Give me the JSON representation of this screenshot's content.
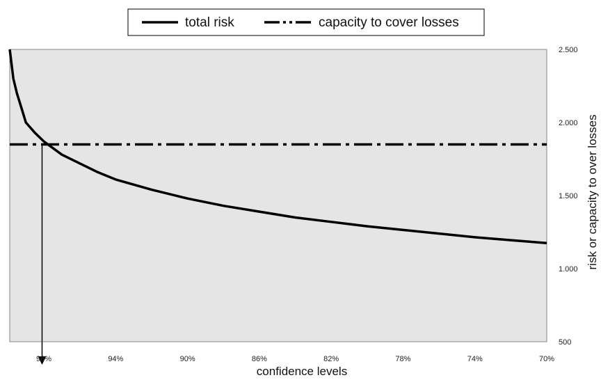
{
  "chart_data": {
    "type": "line",
    "title": "",
    "xlabel": "confidence levels",
    "ylabel": "risk or capacity to over losses",
    "x_axis_reversed": true,
    "xlim": [
      70,
      99.9
    ],
    "ylim": [
      500,
      2500
    ],
    "x_ticks": [
      98,
      94,
      90,
      86,
      82,
      78,
      74,
      70
    ],
    "x_tick_labels": [
      "98%",
      "94%",
      "90%",
      "86%",
      "82%",
      "78%",
      "74%",
      "70%"
    ],
    "y_ticks": [
      2500,
      2000,
      1500,
      1000,
      500
    ],
    "y_tick_labels": [
      "2.500",
      "2.000",
      "1.500",
      "1.000",
      "500"
    ],
    "grid": false,
    "plot_background": "#e5e5e5",
    "legend": {
      "placement": "top-center",
      "entries": [
        "total risk",
        "capacity to cover losses"
      ]
    },
    "series": [
      {
        "name": "total risk",
        "style": "solid",
        "color": "#000000",
        "x": [
          99.9,
          99.7,
          99.5,
          99.2,
          99,
          98.5,
          98,
          97,
          96,
          95,
          94,
          92,
          90,
          88,
          86,
          84,
          82,
          80,
          78,
          76,
          74,
          72,
          70
        ],
        "y": [
          2500,
          2300,
          2200,
          2080,
          2000,
          1930,
          1870,
          1780,
          1720,
          1660,
          1610,
          1540,
          1480,
          1430,
          1390,
          1350,
          1320,
          1290,
          1265,
          1240,
          1215,
          1195,
          1175
        ]
      },
      {
        "name": "capacity to cover losses",
        "style": "dash-dot",
        "color": "#000000",
        "x": [
          99.9,
          70
        ],
        "y": [
          1850,
          1850
        ]
      }
    ],
    "annotations": [
      {
        "type": "arrow",
        "description": "vertical arrow from intersection down below x axis",
        "x": 98.1
      }
    ]
  }
}
